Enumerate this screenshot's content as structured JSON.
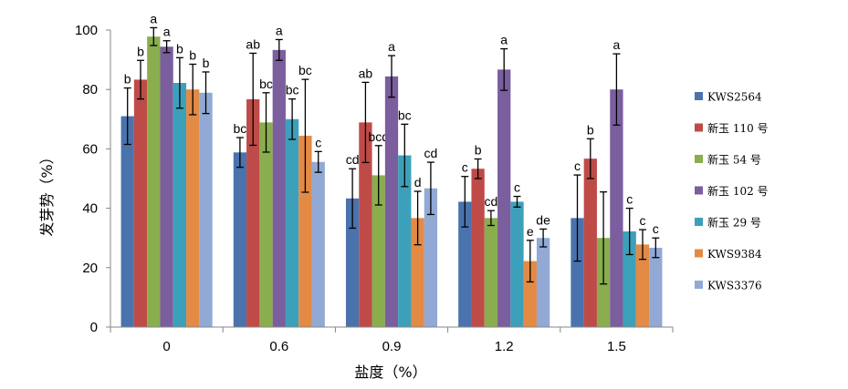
{
  "chart_data": {
    "type": "bar",
    "xlabel": "盐度（%）",
    "ylabel": "发芽势（%）",
    "categories": [
      "0",
      "0.6",
      "0.9",
      "1.2",
      "1.5"
    ],
    "ylim": [
      0,
      100
    ],
    "yticks": [
      "0",
      "20",
      "40",
      "60",
      "80",
      "100"
    ],
    "grid": false,
    "legend_position": "right",
    "series": [
      {
        "name": "KWS2564",
        "color": "#4a73ad",
        "values": [
          71,
          58.8,
          43.3,
          42.2,
          36.7
        ],
        "errors": [
          9.5,
          5,
          10,
          8.5,
          14.5
        ],
        "letters": [
          "b",
          "bc",
          "cd",
          "c",
          "c"
        ]
      },
      {
        "name": "新玉 110 号",
        "color": "#be4b48",
        "values": [
          83.3,
          76.7,
          68.9,
          53.3,
          56.7
        ],
        "errors": [
          6.5,
          15.5,
          13.5,
          3.3,
          6.7
        ],
        "letters": [
          "b",
          "ab",
          "ab",
          "b",
          "b"
        ]
      },
      {
        "name": "新玉 54 号",
        "color": "#8aad4e",
        "values": [
          97.8,
          68.9,
          51.1,
          36.7,
          30
        ],
        "errors": [
          3,
          10,
          10,
          2.5,
          15.5
        ],
        "letters": [
          "a",
          "bc",
          "bcd",
          "cd",
          ""
        ]
      },
      {
        "name": "新玉 102 号",
        "color": "#7b5e9e",
        "values": [
          94.4,
          93.3,
          84.4,
          86.7,
          80
        ],
        "errors": [
          2,
          3.5,
          7,
          7,
          12
        ],
        "letters": [
          "a",
          "a",
          "a",
          "a",
          "a"
        ]
      },
      {
        "name": "新玉 29 号",
        "color": "#3da0ba",
        "values": [
          82.2,
          70,
          57.8,
          42.2,
          32.2
        ],
        "errors": [
          8.5,
          6.8,
          10.5,
          1.8,
          7.8
        ],
        "letters": [
          "b",
          "bc",
          "bc",
          "c",
          "c"
        ]
      },
      {
        "name": "KWS9384",
        "color": "#e38a45",
        "values": [
          80,
          64.4,
          36.7,
          22.2,
          27.8
        ],
        "errors": [
          8.5,
          19,
          9,
          7,
          5
        ],
        "letters": [
          "b",
          "bc",
          "d",
          "e",
          "c"
        ]
      },
      {
        "name": "KWS3376",
        "color": "#91a9d4",
        "values": [
          78.9,
          55.6,
          46.7,
          30,
          26.7
        ],
        "errors": [
          7,
          3.5,
          8.8,
          3,
          3.3
        ],
        "letters": [
          "b",
          "c",
          "cd",
          "de",
          "c"
        ]
      }
    ]
  }
}
